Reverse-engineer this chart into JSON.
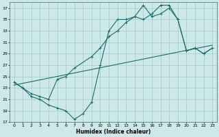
{
  "xlabel": "Humidex (Indice chaleur)",
  "bg_color": "#cce8e8",
  "grid_color": "#aacccc",
  "line_color": "#1a6b6b",
  "xlim": [
    -0.5,
    23.5
  ],
  "ylim": [
    17,
    38
  ],
  "yticks": [
    17,
    19,
    21,
    23,
    25,
    27,
    29,
    31,
    33,
    35,
    37
  ],
  "xticks": [
    0,
    1,
    2,
    3,
    4,
    5,
    6,
    7,
    8,
    9,
    10,
    11,
    12,
    13,
    14,
    15,
    16,
    17,
    18,
    19,
    20,
    21,
    22,
    23
  ],
  "line1_x": [
    0,
    1,
    2,
    3,
    4,
    5,
    6,
    7,
    8,
    9,
    10,
    11,
    12,
    13,
    14,
    15,
    16,
    17,
    18,
    19,
    20,
    21,
    22,
    23
  ],
  "line1_y": [
    24.0,
    23.0,
    21.5,
    21.0,
    20.0,
    19.5,
    19.0,
    17.5,
    18.5,
    20.5,
    27.0,
    33.0,
    35.0,
    35.0,
    35.5,
    37.5,
    35.5,
    36.0,
    37.0,
    35.0,
    29.5,
    30.0,
    29.0,
    30.0
  ],
  "line2_x": [
    0,
    1,
    2,
    3,
    4,
    5,
    6,
    7,
    9,
    10,
    11,
    12,
    13,
    14,
    15,
    16,
    17,
    18,
    19,
    20,
    21,
    22,
    23
  ],
  "line2_y": [
    24.0,
    23.0,
    22.0,
    21.5,
    21.0,
    24.5,
    25.0,
    26.5,
    28.5,
    30.0,
    32.0,
    33.0,
    34.5,
    35.5,
    35.0,
    36.0,
    37.5,
    37.5,
    35.0,
    29.5,
    30.0,
    29.0,
    30.0
  ],
  "line3_x": [
    0,
    23
  ],
  "line3_y": [
    23.5,
    30.5
  ]
}
